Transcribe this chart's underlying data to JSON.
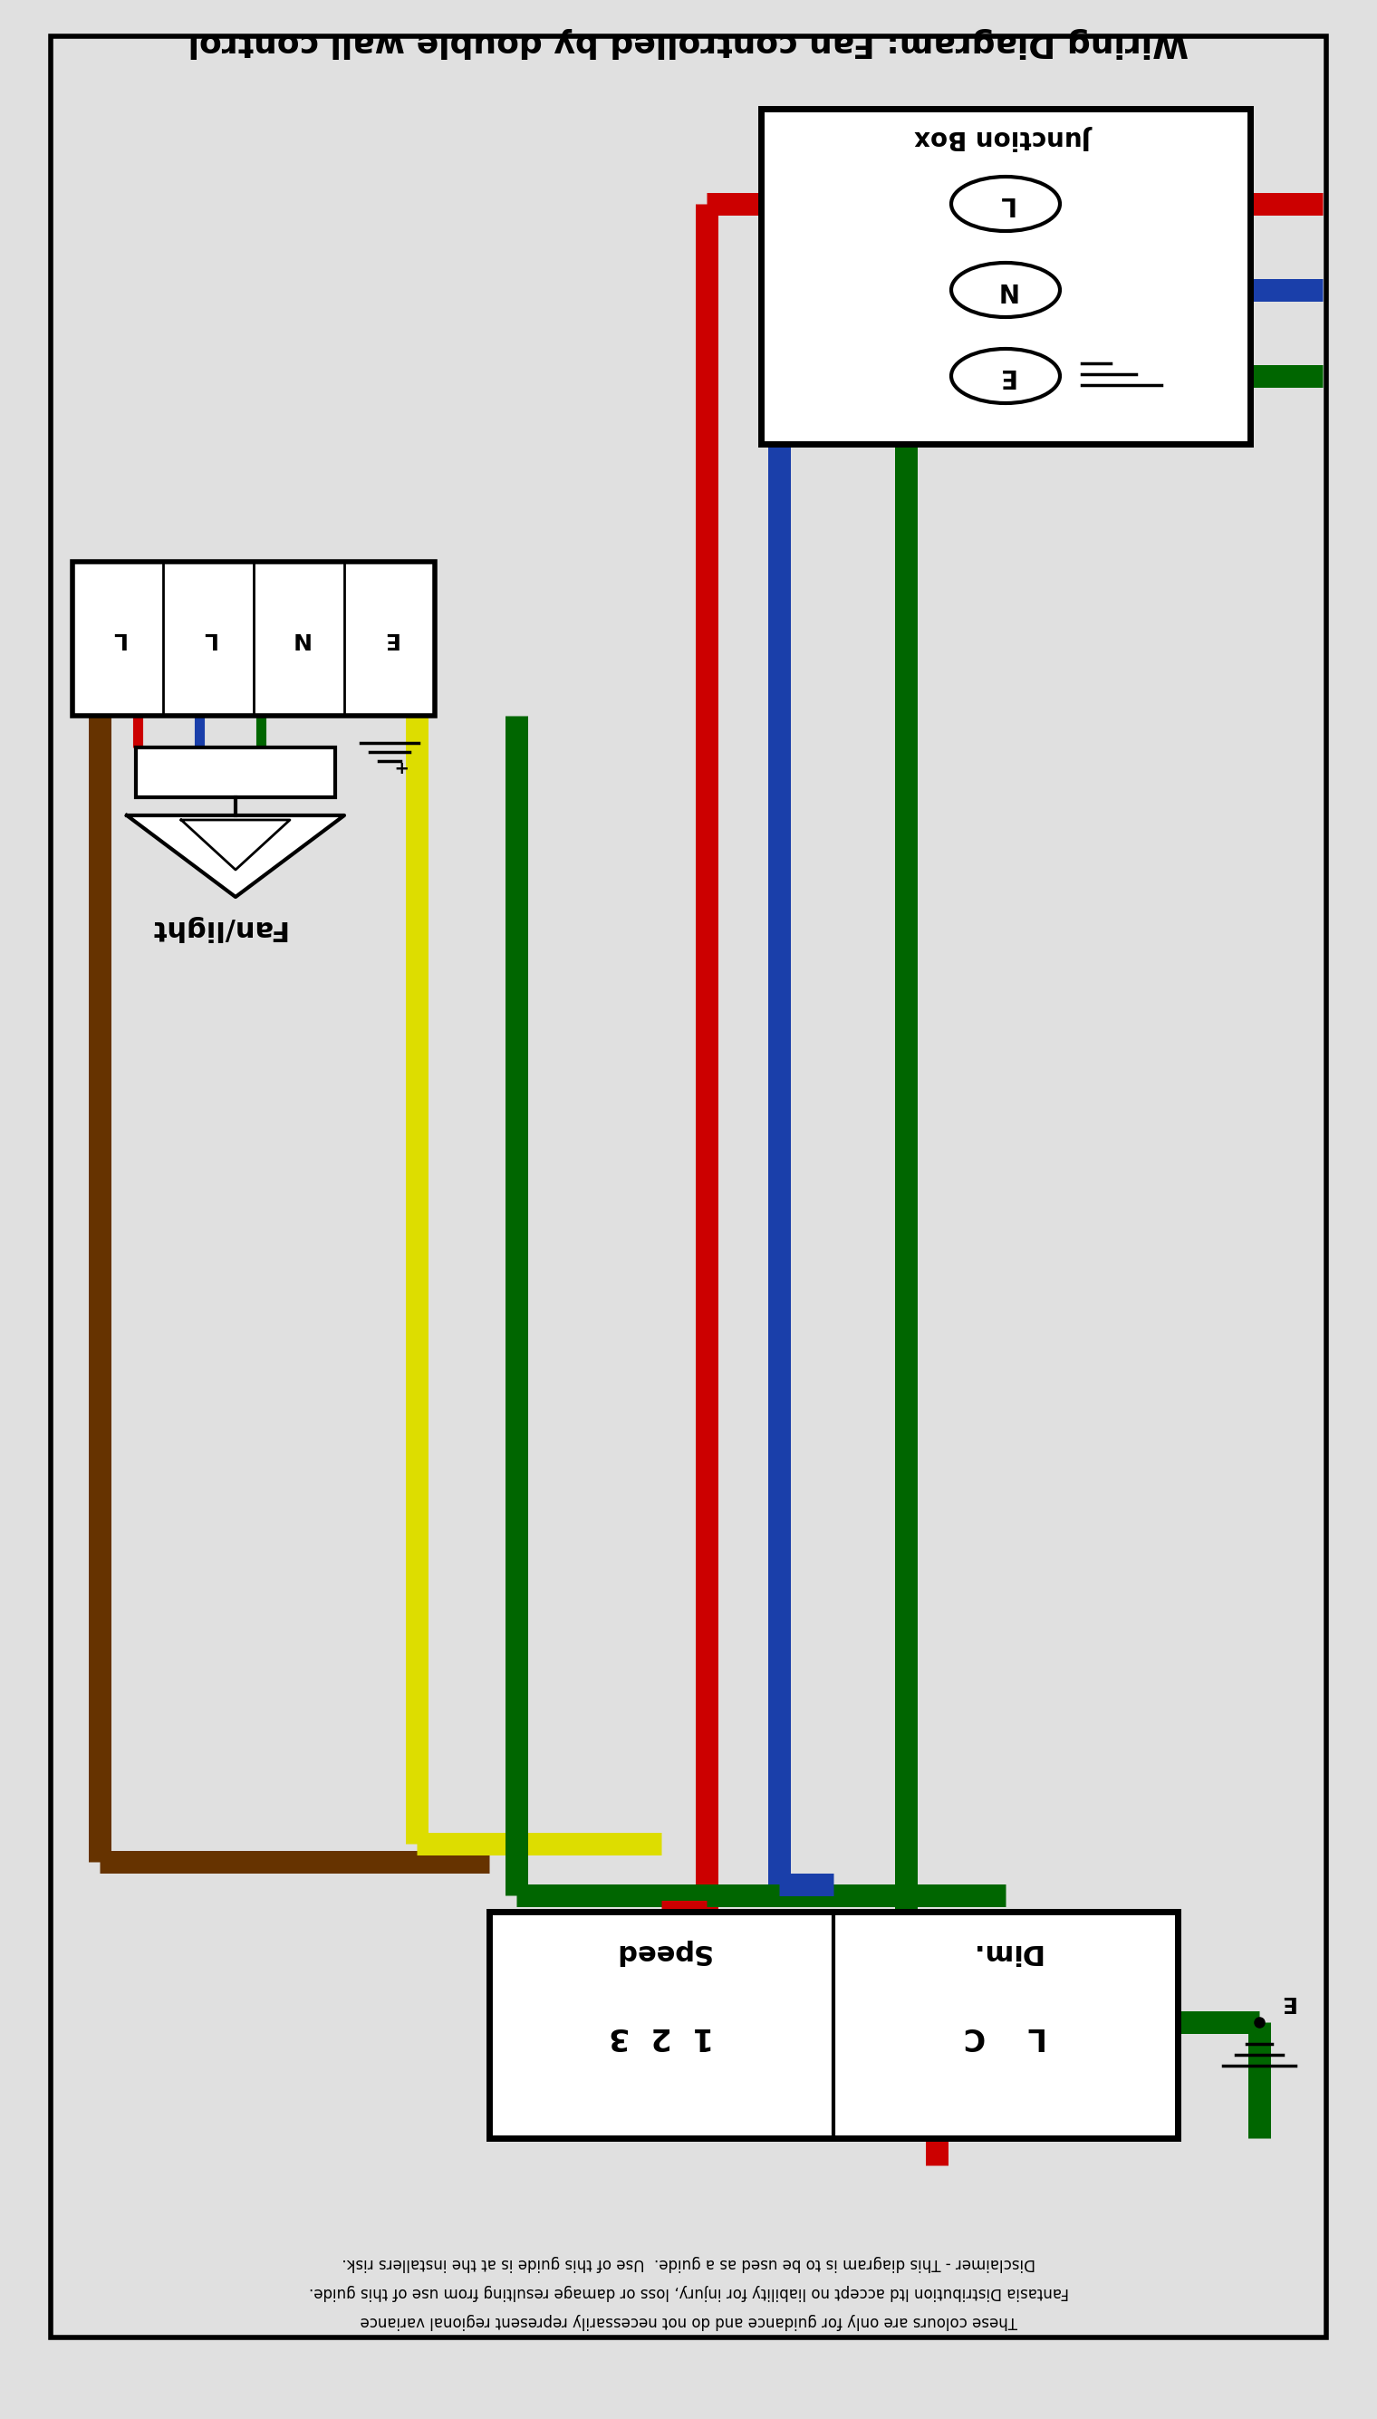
{
  "title": "Wiring Diagram: Fan controlled by double wall control",
  "bg_color": "#e0e0e0",
  "red": "#cc0000",
  "blue": "#1a3faa",
  "green": "#006600",
  "yellow": "#dddd00",
  "brown": "#663300",
  "black": "#000000",
  "white": "#ffffff",
  "lw_wire": 18,
  "disclaimer1": "Disclaimer - This diagram is to be used as a guide.  Use of this guide is at the installers risk.",
  "disclaimer2": "Fantasia Distribution ltd accept no liability for injury, loss or damage resulting from use of this guide.",
  "disclaimer3": "These colours are only for guidance and do not necessarily represent regional variance"
}
